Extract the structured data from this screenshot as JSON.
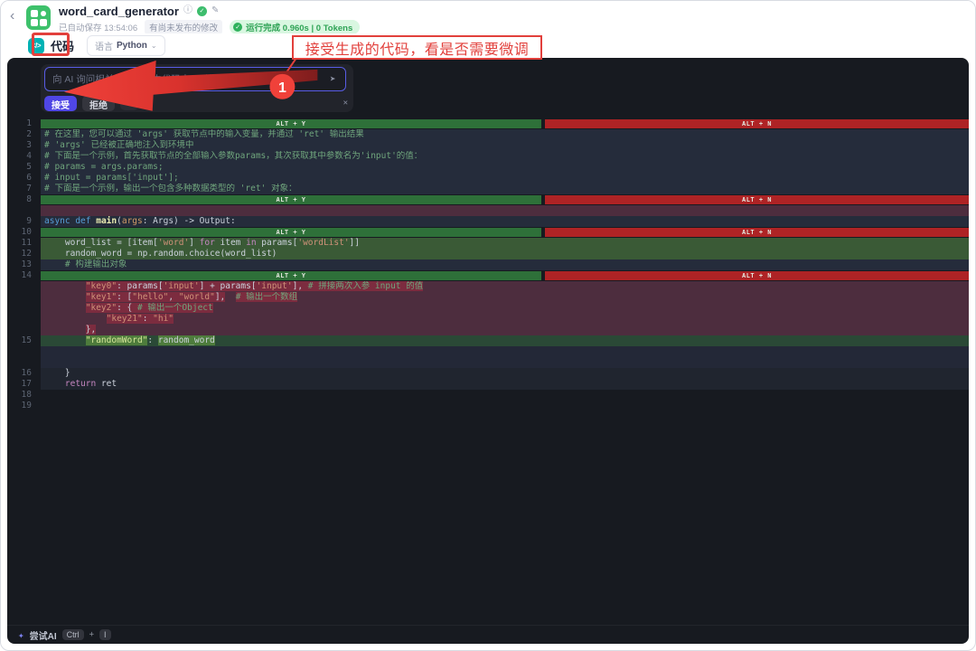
{
  "header": {
    "back": "‹",
    "title": "word_card_generator",
    "autosave": "已自动保存 13:54:06",
    "unpublished": "有尚未发布的修改",
    "run_status": "运行完成 0.960s | 0 Tokens"
  },
  "toolbar": {
    "node_icon": "</>",
    "node_label": "代码",
    "language_label": "语言",
    "language_value": "Python",
    "chevron": "⌄"
  },
  "ai_widget": {
    "placeholder": "向 AI 询问相关代码或选中代码由 AI 编辑...",
    "accept_label": "接受",
    "reject_label": "拒绝",
    "refresh_glyph": "⟳",
    "send_glyph": "➤",
    "close_glyph": "✕"
  },
  "annotation": {
    "text": "接受生成的代码，看是否需要微调",
    "step": "1"
  },
  "diff_bars": {
    "accept_label": "ALT + Y",
    "reject_label": "ALT + N"
  },
  "footer": {
    "try_ai": "尝试AI",
    "key1": "Ctrl",
    "plus": "+",
    "key2": "I",
    "sparkle": "✦"
  },
  "colors": {
    "accent": "#4f46e5",
    "annotation_red": "#e2403c",
    "bar_green": "#2e7039",
    "bar_red": "#ae2325",
    "added_bg": "#3a5a36",
    "removed_bg": "#4d2d3e",
    "run_pill_green": "#2ea355",
    "node_icon_teal": "#00b2b4",
    "app_icon_green": "#3ec16b"
  },
  "code_rows": [
    {
      "num": "1",
      "type": "bar"
    },
    {
      "num": "2",
      "bg": "navy",
      "seg": [
        {
          "c": "com",
          "t": "# 在这里，您可以通过 'args' 获取节点中的输入变量，并通过 'ret' 输出结果"
        }
      ]
    },
    {
      "num": "3",
      "bg": "navy",
      "seg": [
        {
          "c": "com",
          "t": "# 'args' 已经被正确地注入到环境中"
        }
      ]
    },
    {
      "num": "4",
      "bg": "navy",
      "seg": [
        {
          "c": "com",
          "t": "# 下面是一个示例，首先获取节点的全部输入参数params，其次获取其中参数名为'input'的值："
        }
      ]
    },
    {
      "num": "5",
      "bg": "navy",
      "seg": [
        {
          "c": "com",
          "t": "# params = args.params;"
        }
      ]
    },
    {
      "num": "6",
      "bg": "navy",
      "seg": [
        {
          "c": "com",
          "t": "# input = params['input'];"
        }
      ]
    },
    {
      "num": "7",
      "bg": "navy",
      "seg": [
        {
          "c": "com",
          "t": "# 下面是一个示例，输出一个包含多种数据类型的 'ret' 对象："
        }
      ]
    },
    {
      "num": "8",
      "type": "bar"
    },
    {
      "num": "",
      "bg": "maroon",
      "seg": []
    },
    {
      "num": "9",
      "bg": "navy",
      "seg": [
        {
          "c": "kw",
          "t": "async "
        },
        {
          "c": "kw",
          "t": "def "
        },
        {
          "c": "fn",
          "t": "main"
        },
        {
          "c": "txt",
          "t": "("
        },
        {
          "c": "var",
          "t": "args"
        },
        {
          "c": "txt",
          "t": ": Args) -> Output:"
        }
      ]
    },
    {
      "num": "10",
      "type": "bar"
    },
    {
      "num": "11",
      "bg": "green",
      "seg": [
        {
          "c": "txt",
          "t": "    word_list = [item["
        },
        {
          "c": "str",
          "t": "'word'"
        },
        {
          "c": "txt",
          "t": "] "
        },
        {
          "c": "kw2",
          "t": "for"
        },
        {
          "c": "txt",
          "t": " item "
        },
        {
          "c": "kw2",
          "t": "in"
        },
        {
          "c": "txt",
          "t": " params["
        },
        {
          "c": "str",
          "t": "'wordList'"
        },
        {
          "c": "txt",
          "t": "]]"
        }
      ]
    },
    {
      "num": "12",
      "bg": "green",
      "seg": [
        {
          "c": "txt",
          "t": "    random_word = np.random.choice(word_list)"
        }
      ]
    },
    {
      "num": "13",
      "bg": "navy",
      "seg": [
        {
          "c": "com",
          "t": "    # 构建输出对象"
        }
      ]
    },
    {
      "num": "14",
      "type": "bar"
    },
    {
      "num": "",
      "bg": "maroon",
      "seg": [
        {
          "c": "txt",
          "t": "        "
        },
        {
          "c": "str del",
          "t": "\"key0\""
        },
        {
          "c": "txt del",
          "t": ": params["
        },
        {
          "c": "str del",
          "t": "'input'"
        },
        {
          "c": "txt del",
          "t": "] + params["
        },
        {
          "c": "str del",
          "t": "'input'"
        },
        {
          "c": "txt del",
          "t": "], "
        },
        {
          "c": "com del",
          "t": "# 拼接两次入参 input 的值"
        }
      ]
    },
    {
      "num": "",
      "bg": "maroon",
      "seg": [
        {
          "c": "txt",
          "t": "        "
        },
        {
          "c": "str del",
          "t": "\"key1\""
        },
        {
          "c": "txt del",
          "t": ": ["
        },
        {
          "c": "str del",
          "t": "\"hello\""
        },
        {
          "c": "txt del",
          "t": ", "
        },
        {
          "c": "str del",
          "t": "\"world\""
        },
        {
          "c": "txt del",
          "t": "],"
        },
        {
          "c": "txt",
          "t": "  "
        },
        {
          "c": "com del",
          "t": "# 输出一个数组"
        }
      ]
    },
    {
      "num": "",
      "bg": "maroon",
      "seg": [
        {
          "c": "txt",
          "t": "        "
        },
        {
          "c": "str del",
          "t": "\"key2\""
        },
        {
          "c": "txt del",
          "t": ": { "
        },
        {
          "c": "com del",
          "t": "# 输出一个Object"
        }
      ]
    },
    {
      "num": "",
      "bg": "maroon",
      "seg": [
        {
          "c": "txt",
          "t": "            "
        },
        {
          "c": "str del",
          "t": "\"key21\""
        },
        {
          "c": "txt del",
          "t": ": "
        },
        {
          "c": "str del",
          "t": "\"hi\""
        }
      ]
    },
    {
      "num": "",
      "bg": "maroon",
      "seg": [
        {
          "c": "txt",
          "t": "        "
        },
        {
          "c": "txt del",
          "t": "},"
        }
      ]
    },
    {
      "num": "15",
      "bg": "green2",
      "seg": [
        {
          "c": "txt",
          "t": "        "
        },
        {
          "c": "stradd add",
          "t": "\"randomWord\""
        },
        {
          "c": "txt",
          "t": ": "
        },
        {
          "c": "txt add",
          "t": "random_word"
        }
      ]
    },
    {
      "num": "",
      "bg": "navy2",
      "seg": []
    },
    {
      "num": "",
      "bg": "navy2",
      "seg": []
    },
    {
      "num": "16",
      "bg": "faint",
      "seg": [
        {
          "c": "txt",
          "t": "    }"
        }
      ]
    },
    {
      "num": "17",
      "bg": "faint",
      "seg": [
        {
          "c": "txt",
          "t": "    "
        },
        {
          "c": "kw2",
          "t": "return"
        },
        {
          "c": "txt",
          "t": " ret"
        }
      ]
    },
    {
      "num": "18",
      "seg": []
    },
    {
      "num": "19",
      "seg": []
    }
  ]
}
